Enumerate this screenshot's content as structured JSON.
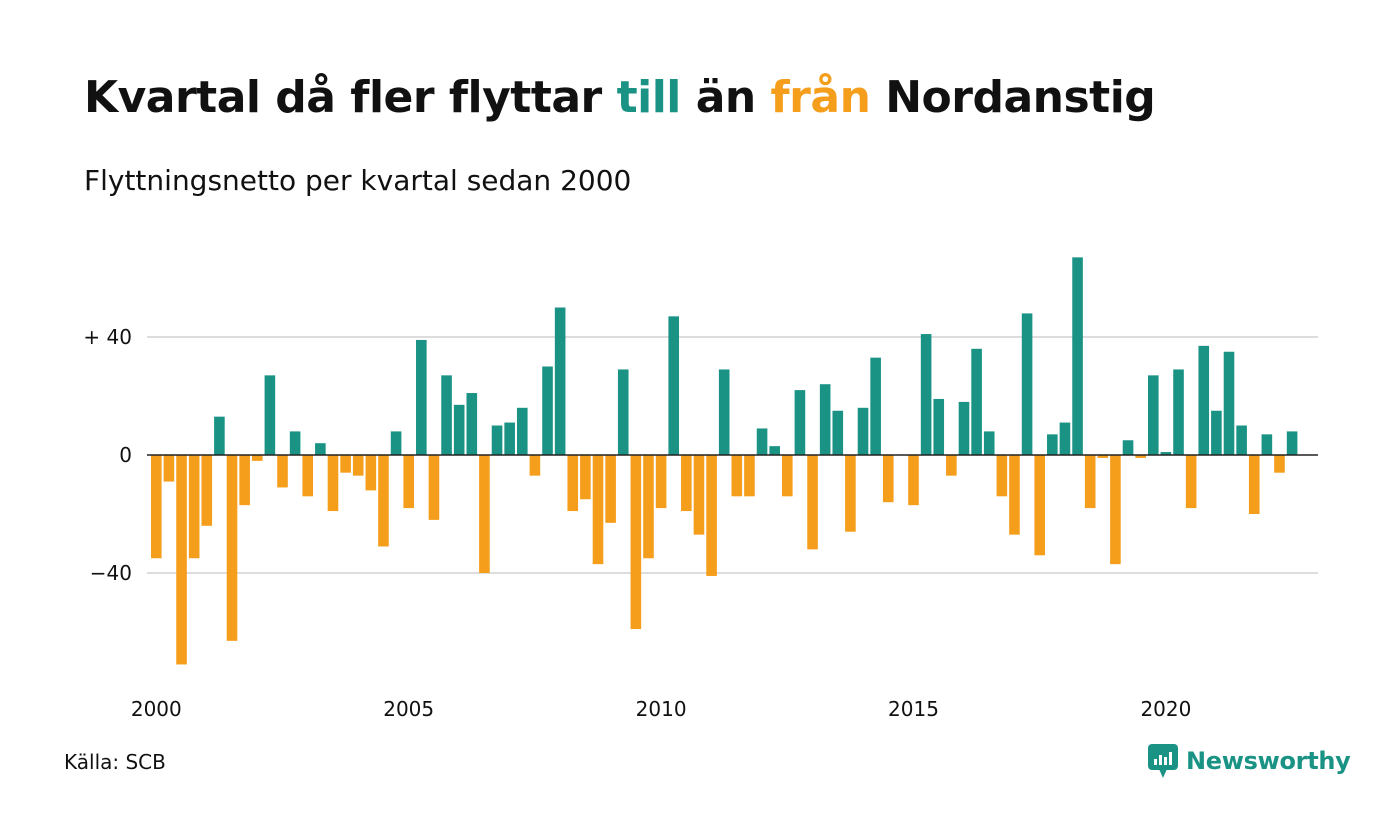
{
  "title": {
    "part1": "Kvartal då fler flyttar",
    "highlight_positive": "till",
    "part2": "än",
    "highlight_negative": "från",
    "part3": "Nordanstig"
  },
  "subtitle": "Flyttningsnetto per kvartal sedan 2000",
  "source": "Källa: SCB",
  "brand": {
    "name": "Newsworthy",
    "icon": "newsworthy-bar-chart-bubble-icon"
  },
  "colors": {
    "positive": "#1a9385",
    "negative": "#f59e1c",
    "grid": "#dddddd",
    "zero_line": "#222222",
    "text": "#111111"
  },
  "chart_data": {
    "type": "bar",
    "title": "Kvartal då fler flyttar till än från Nordanstig",
    "subtitle": "Flyttningsnetto per kvartal sedan 2000",
    "xlabel": "",
    "ylabel": "",
    "x_start_year": 2000,
    "periods_per_year": 4,
    "xticks": [
      "2000",
      "2005",
      "2010",
      "2015",
      "2020"
    ],
    "yticks": [
      {
        "value": 40,
        "label": "+ 40"
      },
      {
        "value": 0,
        "label": "0"
      },
      {
        "value": -40,
        "label": "−40"
      }
    ],
    "ylim": [
      -73,
      68
    ],
    "grid": true,
    "values": [
      -35,
      -9,
      -71,
      -35,
      -24,
      13,
      -63,
      -17,
      -2,
      27,
      -11,
      8,
      -14,
      4,
      -19,
      -6,
      -7,
      -12,
      -31,
      8,
      -18,
      39,
      -22,
      27,
      17,
      21,
      -40,
      10,
      11,
      16,
      -7,
      30,
      50,
      -19,
      -15,
      -37,
      -23,
      29,
      -59,
      -35,
      -18,
      47,
      -19,
      -27,
      -41,
      29,
      -14,
      -14,
      9,
      3,
      -14,
      22,
      -32,
      24,
      15,
      -26,
      16,
      33,
      -16,
      0,
      -17,
      41,
      19,
      -7,
      18,
      36,
      8,
      -14,
      -27,
      48,
      -34,
      7,
      11,
      67,
      -18,
      -1,
      -37,
      5,
      -1,
      27,
      1,
      29,
      -18,
      37,
      15,
      35,
      10,
      -20,
      7,
      -6,
      8
    ]
  }
}
